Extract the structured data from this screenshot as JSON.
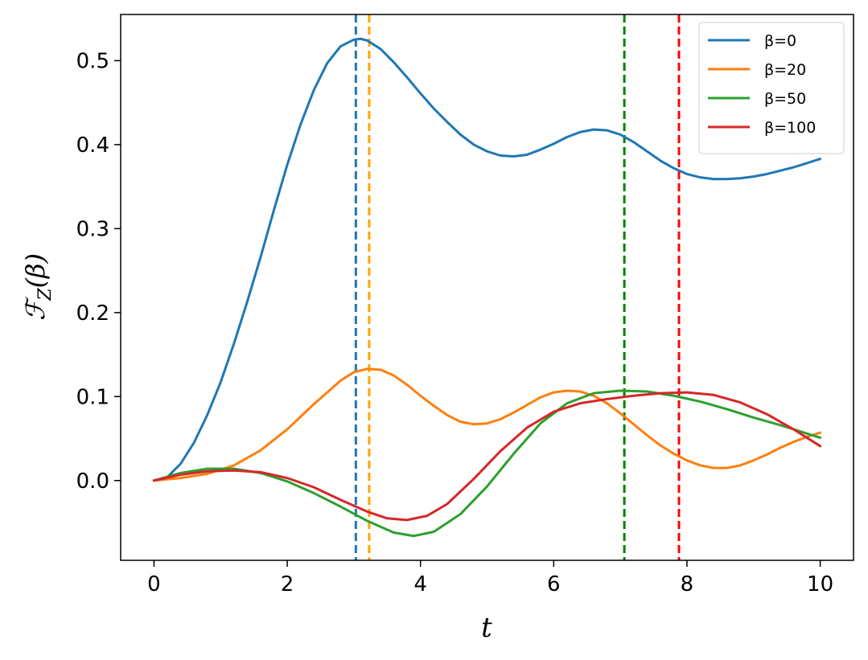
{
  "chart_data": {
    "type": "line",
    "title": "",
    "xlabel": "t",
    "ylabel_main": "ℱ",
    "ylabel_sub": "Z",
    "ylabel_arg": "(β)",
    "xlim": [
      -0.5,
      10.5
    ],
    "ylim": [
      -0.095,
      0.555
    ],
    "xticks": [
      0,
      2,
      4,
      6,
      8,
      10
    ],
    "xtick_labels": [
      "0",
      "2",
      "4",
      "6",
      "8",
      "10"
    ],
    "yticks": [
      0.0,
      0.1,
      0.2,
      0.3,
      0.4,
      0.5
    ],
    "ytick_labels": [
      "0.0",
      "0.1",
      "0.2",
      "0.3",
      "0.4",
      "0.5"
    ],
    "grid": false,
    "legend_position": "top-right",
    "series": [
      {
        "name": "β=0",
        "color": "#1f77b4",
        "x": [
          0,
          0.2,
          0.4,
          0.6,
          0.8,
          1.0,
          1.2,
          1.4,
          1.6,
          1.8,
          2.0,
          2.2,
          2.4,
          2.6,
          2.8,
          3.0,
          3.1,
          3.2,
          3.4,
          3.6,
          3.8,
          4.0,
          4.2,
          4.4,
          4.6,
          4.8,
          5.0,
          5.2,
          5.4,
          5.6,
          5.8,
          6.0,
          6.2,
          6.4,
          6.6,
          6.8,
          7.0,
          7.2,
          7.4,
          7.6,
          7.8,
          8.0,
          8.2,
          8.4,
          8.6,
          8.8,
          9.0,
          9.2,
          9.4,
          9.6,
          9.8,
          10.0
        ],
        "y": [
          0.0,
          0.004,
          0.02,
          0.045,
          0.078,
          0.117,
          0.163,
          0.213,
          0.266,
          0.322,
          0.376,
          0.424,
          0.465,
          0.497,
          0.517,
          0.525,
          0.526,
          0.524,
          0.514,
          0.498,
          0.48,
          0.461,
          0.443,
          0.427,
          0.412,
          0.4,
          0.392,
          0.387,
          0.386,
          0.388,
          0.394,
          0.401,
          0.409,
          0.415,
          0.418,
          0.417,
          0.412,
          0.403,
          0.392,
          0.381,
          0.372,
          0.365,
          0.361,
          0.359,
          0.359,
          0.36,
          0.362,
          0.365,
          0.369,
          0.373,
          0.378,
          0.383
        ]
      },
      {
        "name": "β=20",
        "color": "#ff7f0e",
        "x": [
          0,
          0.4,
          0.8,
          1.2,
          1.6,
          2.0,
          2.4,
          2.8,
          3.0,
          3.2,
          3.4,
          3.6,
          3.8,
          4.0,
          4.2,
          4.4,
          4.6,
          4.8,
          5.0,
          5.2,
          5.4,
          5.6,
          5.8,
          6.0,
          6.2,
          6.4,
          6.6,
          6.8,
          7.0,
          7.2,
          7.4,
          7.6,
          7.8,
          8.0,
          8.2,
          8.4,
          8.6,
          8.8,
          9.0,
          9.2,
          9.4,
          9.6,
          9.8,
          10.0
        ],
        "y": [
          0.0,
          0.003,
          0.008,
          0.018,
          0.036,
          0.061,
          0.091,
          0.119,
          0.129,
          0.133,
          0.132,
          0.125,
          0.114,
          0.101,
          0.089,
          0.078,
          0.07,
          0.067,
          0.068,
          0.073,
          0.081,
          0.09,
          0.099,
          0.105,
          0.107,
          0.106,
          0.101,
          0.092,
          0.08,
          0.067,
          0.054,
          0.042,
          0.032,
          0.024,
          0.018,
          0.015,
          0.015,
          0.018,
          0.024,
          0.031,
          0.039,
          0.046,
          0.052,
          0.057
        ]
      },
      {
        "name": "β=50",
        "color": "#2ca02c",
        "x": [
          0,
          0.4,
          0.8,
          1.2,
          1.6,
          2.0,
          2.4,
          2.8,
          3.2,
          3.6,
          3.9,
          4.2,
          4.6,
          5.0,
          5.4,
          5.8,
          6.2,
          6.6,
          7.0,
          7.4,
          7.8,
          8.2,
          8.6,
          9.0,
          9.4,
          9.8,
          10.0
        ],
        "y": [
          0.0,
          0.009,
          0.014,
          0.014,
          0.009,
          -0.001,
          -0.015,
          -0.031,
          -0.048,
          -0.062,
          -0.066,
          -0.061,
          -0.04,
          -0.007,
          0.032,
          0.068,
          0.092,
          0.104,
          0.107,
          0.106,
          0.101,
          0.094,
          0.085,
          0.075,
          0.066,
          0.056,
          0.051
        ]
      },
      {
        "name": "β=100",
        "color": "#d62728",
        "x": [
          0,
          0.4,
          0.8,
          1.2,
          1.6,
          2.0,
          2.4,
          2.8,
          3.2,
          3.5,
          3.8,
          4.1,
          4.4,
          4.8,
          5.2,
          5.6,
          6.0,
          6.4,
          6.8,
          7.2,
          7.6,
          8.0,
          8.4,
          8.8,
          9.2,
          9.6,
          10.0
        ],
        "y": [
          0.0,
          0.007,
          0.011,
          0.012,
          0.01,
          0.003,
          -0.008,
          -0.023,
          -0.037,
          -0.045,
          -0.047,
          -0.042,
          -0.028,
          0.002,
          0.035,
          0.063,
          0.082,
          0.092,
          0.097,
          0.101,
          0.104,
          0.105,
          0.102,
          0.093,
          0.079,
          0.061,
          0.041
        ]
      }
    ],
    "vlines": [
      {
        "x": 3.03,
        "color": "#1f77b4"
      },
      {
        "x": 3.23,
        "color": "#ffa500"
      },
      {
        "x": 7.06,
        "color": "#008000"
      },
      {
        "x": 7.88,
        "color": "#ff0000"
      }
    ]
  }
}
